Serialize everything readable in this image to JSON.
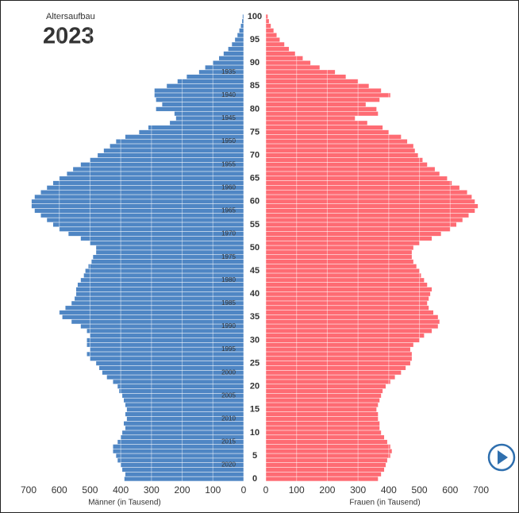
{
  "chart_data": {
    "type": "pyramid",
    "subtitle": "Altersaufbau",
    "title": "2023",
    "categories": [
      0,
      1,
      2,
      3,
      4,
      5,
      6,
      7,
      8,
      9,
      10,
      11,
      12,
      13,
      14,
      15,
      16,
      17,
      18,
      19,
      20,
      21,
      22,
      23,
      24,
      25,
      26,
      27,
      28,
      29,
      30,
      31,
      32,
      33,
      34,
      35,
      36,
      37,
      38,
      39,
      40,
      41,
      42,
      43,
      44,
      45,
      46,
      47,
      48,
      49,
      50,
      51,
      52,
      53,
      54,
      55,
      56,
      57,
      58,
      59,
      60,
      61,
      62,
      63,
      64,
      65,
      66,
      67,
      68,
      69,
      70,
      71,
      72,
      73,
      74,
      75,
      76,
      77,
      78,
      79,
      80,
      81,
      82,
      83,
      84,
      85,
      86,
      87,
      88,
      89,
      90,
      91,
      92,
      93,
      94,
      95,
      96,
      97,
      98,
      99,
      100
    ],
    "series": [
      {
        "name": "Männer (in Tausend)",
        "color": "#4f86c4",
        "side": "left",
        "values": [
          388,
          385,
          395,
          400,
          410,
          415,
          425,
          425,
          410,
          400,
          395,
          385,
          390,
          380,
          385,
          380,
          385,
          390,
          395,
          405,
          410,
          425,
          445,
          460,
          470,
          480,
          500,
          510,
          500,
          510,
          510,
          500,
          510,
          530,
          560,
          590,
          600,
          580,
          560,
          550,
          545,
          545,
          540,
          530,
          520,
          515,
          505,
          495,
          490,
          480,
          480,
          500,
          530,
          570,
          600,
          620,
          640,
          660,
          680,
          690,
          690,
          680,
          660,
          640,
          620,
          600,
          575,
          555,
          530,
          500,
          475,
          455,
          435,
          415,
          385,
          340,
          310,
          240,
          220,
          225,
          285,
          265,
          285,
          290,
          290,
          250,
          215,
          185,
          145,
          125,
          100,
          80,
          65,
          50,
          38,
          28,
          20,
          14,
          9,
          5,
          3
        ]
      },
      {
        "name": "Frauen (in Tausend)",
        "color": "#fe6b73",
        "side": "right",
        "values": [
          365,
          375,
          385,
          390,
          395,
          405,
          410,
          405,
          395,
          385,
          375,
          370,
          370,
          365,
          365,
          360,
          365,
          370,
          375,
          380,
          390,
          405,
          420,
          440,
          455,
          470,
          475,
          475,
          470,
          480,
          500,
          515,
          540,
          560,
          565,
          560,
          545,
          530,
          525,
          530,
          535,
          540,
          525,
          515,
          505,
          500,
          490,
          480,
          475,
          475,
          480,
          500,
          540,
          570,
          600,
          620,
          640,
          660,
          680,
          690,
          680,
          670,
          655,
          630,
          605,
          590,
          565,
          550,
          525,
          510,
          495,
          485,
          480,
          460,
          440,
          400,
          380,
          330,
          290,
          365,
          360,
          325,
          370,
          405,
          375,
          335,
          300,
          260,
          225,
          175,
          145,
          120,
          95,
          75,
          60,
          45,
          35,
          25,
          16,
          10,
          6
        ]
      }
    ],
    "xlim": [
      0,
      700
    ],
    "xticks": [
      0,
      100,
      200,
      300,
      400,
      500,
      600,
      700
    ],
    "ylim": [
      -0.5,
      100.5
    ],
    "yticks": [
      0,
      5,
      10,
      15,
      20,
      25,
      30,
      35,
      40,
      45,
      50,
      55,
      60,
      65,
      70,
      75,
      80,
      85,
      90,
      95,
      100
    ],
    "birth_year_ticks": [
      {
        "value": 88,
        "label": "1935"
      },
      {
        "value": 83,
        "label": "1940"
      },
      {
        "value": 78,
        "label": "1945"
      },
      {
        "value": 73,
        "label": "1950"
      },
      {
        "value": 68,
        "label": "1955"
      },
      {
        "value": 63,
        "label": "1960"
      },
      {
        "value": 58,
        "label": "1965"
      },
      {
        "value": 53,
        "label": "1970"
      },
      {
        "value": 48,
        "label": "1975"
      },
      {
        "value": 43,
        "label": "1980"
      },
      {
        "value": 38,
        "label": "1985"
      },
      {
        "value": 33,
        "label": "1990"
      },
      {
        "value": 28,
        "label": "1995"
      },
      {
        "value": 23,
        "label": "2000"
      },
      {
        "value": 18,
        "label": "2005"
      },
      {
        "value": 13,
        "label": "2010"
      },
      {
        "value": 8,
        "label": "2015"
      },
      {
        "value": 3,
        "label": "2020"
      }
    ],
    "grid": true
  }
}
